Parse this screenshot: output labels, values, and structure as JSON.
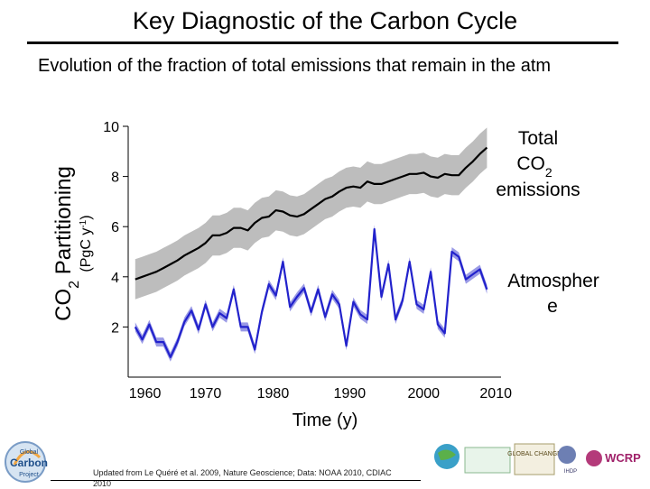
{
  "page": {
    "title": "Key Diagnostic of the Carbon Cycle",
    "subtitle": "Evolution of the fraction of total emissions that remain in the atm",
    "footer_note": "Updated from Le Quéré et al. 2009, Nature Geoscience; Data: NOAA 2010, CDIAC 2010",
    "logos": {
      "global_carbon_project": [
        "Global",
        "Carbon",
        "Project"
      ],
      "right_logos": [
        "GLOBAL CHANGE",
        "IHDP",
        "WCRP"
      ]
    }
  },
  "chart_data": {
    "type": "line",
    "title": "",
    "xlabel": "Time (y)",
    "ylabel": "CO2 Partitioning",
    "ylabel_units": "(PgC y-1)",
    "ylabel_parts": {
      "main": "CO",
      "sub": "2",
      "rest": " Partitioning",
      "unit_a": "(PgC y",
      "unit_sup": "-1",
      "unit_b": ")"
    },
    "xlim": [
      1958,
      2011
    ],
    "ylim": [
      0,
      10
    ],
    "x_ticks": [
      1960,
      1970,
      1980,
      1990,
      2000,
      2010
    ],
    "x_tick_labels": [
      "1960",
      "1970",
      "1980",
      "1990",
      "2000",
      "2010"
    ],
    "y_ticks": [
      2,
      4,
      6,
      8,
      10
    ],
    "y_tick_labels": [
      "2",
      "4",
      "6",
      "8",
      "10"
    ],
    "x": [
      1959,
      1960,
      1961,
      1962,
      1963,
      1964,
      1965,
      1966,
      1967,
      1968,
      1969,
      1970,
      1971,
      1972,
      1973,
      1974,
      1975,
      1976,
      1977,
      1978,
      1979,
      1980,
      1981,
      1982,
      1983,
      1984,
      1985,
      1986,
      1987,
      1988,
      1989,
      1990,
      1991,
      1992,
      1993,
      1994,
      1995,
      1996,
      1997,
      1998,
      1999,
      2000,
      2001,
      2002,
      2003,
      2004,
      2005,
      2006,
      2007,
      2008,
      2009
    ],
    "series": [
      {
        "name": "Total CO2 emissions",
        "label_lines": {
          "l1": "Total",
          "l2a": "CO",
          "l2sub": "2",
          "l3": "emissions"
        },
        "color": "#000000",
        "band_color": "#bdbdbd",
        "uncertainty": 0.8,
        "values": [
          3.9,
          4.0,
          4.1,
          4.2,
          4.35,
          4.5,
          4.65,
          4.85,
          5.0,
          5.15,
          5.35,
          5.65,
          5.65,
          5.75,
          5.95,
          5.95,
          5.85,
          6.15,
          6.35,
          6.4,
          6.65,
          6.6,
          6.45,
          6.4,
          6.5,
          6.7,
          6.9,
          7.1,
          7.2,
          7.4,
          7.55,
          7.6,
          7.55,
          7.8,
          7.7,
          7.7,
          7.8,
          7.9,
          8.0,
          8.1,
          8.1,
          8.15,
          8.0,
          7.95,
          8.1,
          8.05,
          8.05,
          8.35,
          8.6,
          8.9,
          9.15
        ]
      },
      {
        "name": "Atmosphere",
        "label_lines": {
          "l1": "Atmospher",
          "l2": "e"
        },
        "color": "#2222cc",
        "band_color": "#9a9ae6",
        "uncertainty": 0.18,
        "values": [
          2.0,
          1.5,
          2.1,
          1.4,
          1.4,
          0.8,
          1.4,
          2.2,
          2.65,
          1.9,
          2.9,
          2.0,
          2.55,
          2.35,
          3.5,
          2.0,
          2.0,
          1.1,
          2.6,
          3.7,
          3.25,
          4.6,
          2.8,
          3.2,
          3.55,
          2.6,
          3.5,
          2.4,
          3.3,
          2.9,
          1.25,
          3.0,
          2.5,
          2.3,
          5.9,
          3.2,
          4.5,
          2.3,
          3.05,
          4.6,
          2.9,
          2.7,
          4.2,
          2.1,
          1.75,
          5.0,
          4.8,
          3.9,
          4.1,
          4.3,
          3.5
        ]
      }
    ]
  }
}
